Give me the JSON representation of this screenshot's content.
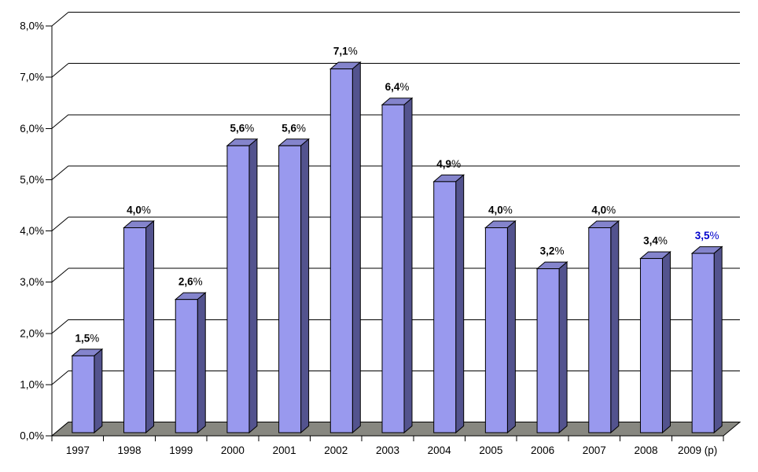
{
  "chart_data": {
    "type": "bar",
    "style": "3d-column",
    "title": "",
    "xlabel": "",
    "ylabel": "",
    "categories": [
      "1997",
      "1998",
      "1999",
      "2000",
      "2001",
      "2002",
      "2003",
      "2004",
      "2005",
      "2006",
      "2007",
      "2008",
      "2009 (p)"
    ],
    "values": [
      1.5,
      4.0,
      2.6,
      5.6,
      5.6,
      7.1,
      6.4,
      4.9,
      4.0,
      3.2,
      4.0,
      3.4,
      3.5
    ],
    "bar_labels": [
      "1,5",
      "4,0",
      "2,6",
      "5,6",
      "5,6",
      "7,1",
      "6,4",
      "4,9",
      "4,0",
      "3,2",
      "4,0",
      "3,4",
      "3,5"
    ],
    "label_suffix": "%",
    "label_colors": [
      "#000000",
      "#000000",
      "#000000",
      "#000000",
      "#000000",
      "#000000",
      "#000000",
      "#000000",
      "#000000",
      "#000000",
      "#000000",
      "#000000",
      "#0000CC"
    ],
    "y_tick_labels": [
      "0,0%",
      "1,0%",
      "2,0%",
      "3,0%",
      "4,0%",
      "5,0%",
      "6,0%",
      "7,0%",
      "8,0%"
    ],
    "ylim": [
      0,
      8
    ],
    "y_step": 1,
    "grid": true,
    "legend": false,
    "colors": {
      "bar_front": "#9999EE",
      "bar_top": "#8484CC",
      "bar_side": "#53538E",
      "floor": "#878780",
      "axis": "#000000",
      "grid_line": "#000000",
      "background": "#FFFFFF",
      "text": "#000000"
    }
  }
}
